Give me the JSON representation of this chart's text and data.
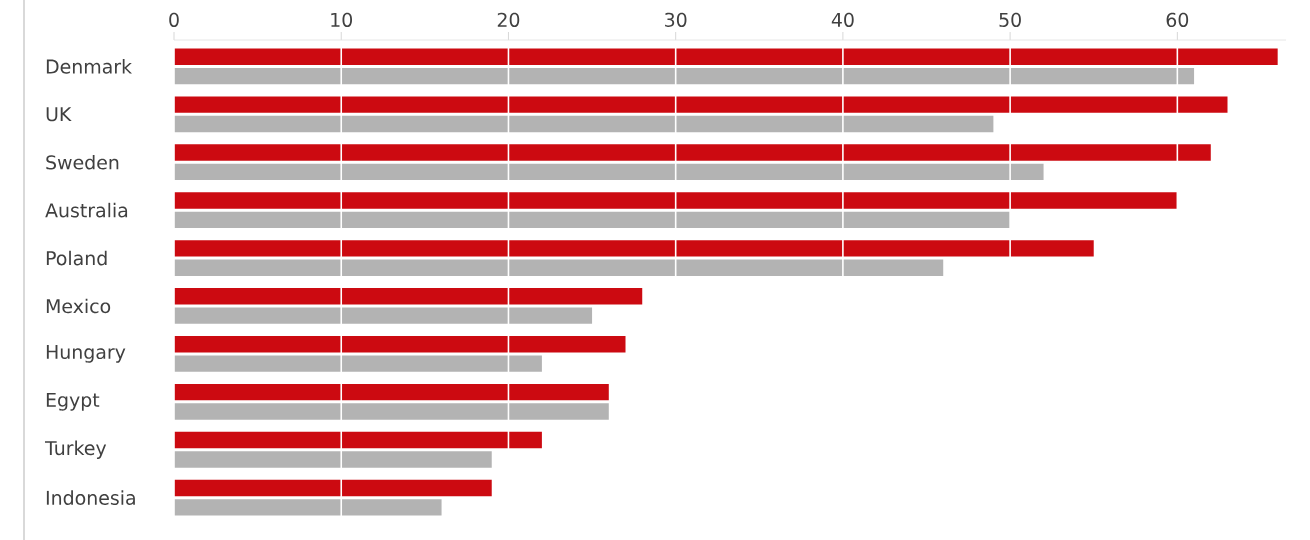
{
  "chart_data": {
    "type": "bar",
    "orientation": "horizontal",
    "categories": [
      "Denmark",
      "UK",
      "Sweden",
      "Australia",
      "Poland",
      "Mexico",
      "Hungary",
      "Egypt",
      "Turkey",
      "Indonesia"
    ],
    "series": [
      {
        "color": "#cc0a11",
        "values": [
          66,
          63,
          62,
          60,
          55,
          28,
          27,
          26,
          22,
          19
        ]
      },
      {
        "color": "#b3b3b3",
        "values": [
          61,
          49,
          52,
          50,
          46,
          25,
          22,
          26,
          19,
          16
        ]
      }
    ],
    "xlim": [
      0,
      66.5
    ],
    "xticks": [
      0,
      10,
      20,
      30,
      40,
      50,
      60
    ],
    "grid": "x"
  }
}
